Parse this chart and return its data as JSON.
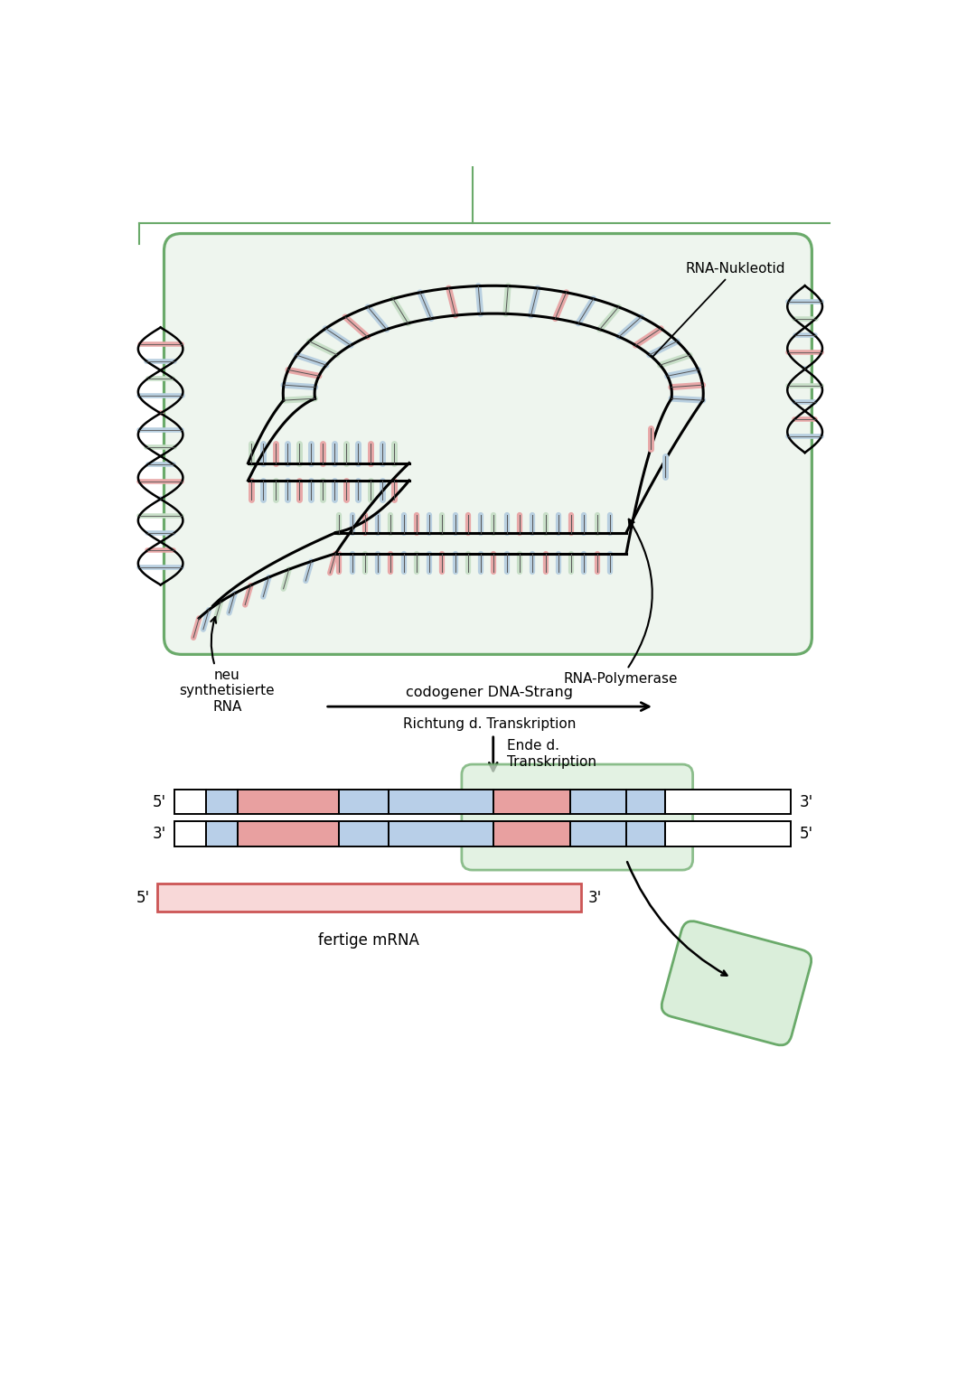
{
  "bg_color": "#ffffff",
  "green_box_color": "#eef5ee",
  "green_border_color": "#6aaa6a",
  "green_highlight_color": "#daeeda",
  "arrow_color": "#111111",
  "strand_bar_blue": "#b8cfe8",
  "strand_bar_pink": "#e8a0a0",
  "strand_bar_white": "#ffffff",
  "mrna_bar_color": "#f8d8d8",
  "mrna_border_color": "#cc5555",
  "label_font": "DejaVu Sans",
  "top_line_color": "#6aaa6a",
  "nuc_colors": [
    "#c8dfc8",
    "#b8cfe0",
    "#e8a8a8",
    "#b8cfe0"
  ],
  "nuc_colors2": [
    "#e8a8a8",
    "#b8cfe0",
    "#c8dfc8",
    "#b8cfe0"
  ],
  "labels": {
    "rna_nukleotid": "RNA-Nukleotid",
    "rna_polymerase": "RNA-Polymerase",
    "neu_synthetisierte": "neu\nsynthetisierte\nRNA",
    "codogener": "codogener DNA-Strang",
    "richtung": "Richtung d. Transkription",
    "ende": "Ende d.\nTranskription",
    "fertige_mrna": "fertige mRNA"
  }
}
